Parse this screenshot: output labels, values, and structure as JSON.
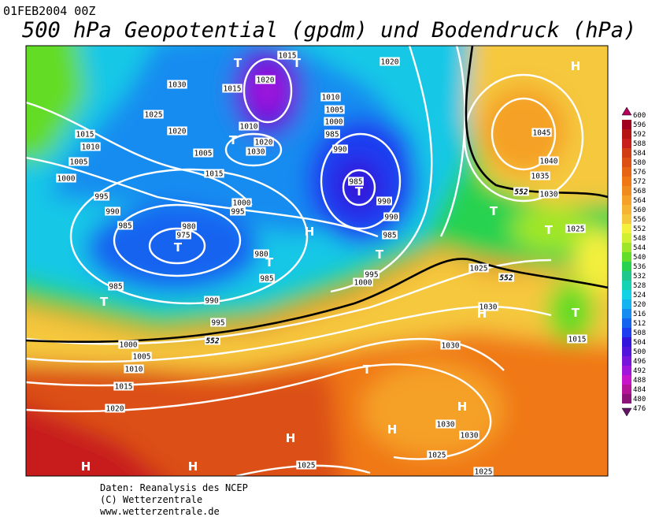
{
  "header": {
    "date": "01FEB2004 00Z",
    "title": "500 hPa Geopotential (gpdm) und Bodendruck (hPa)"
  },
  "map": {
    "pressure_labels": [
      1015,
      1020,
      1030,
      1015,
      1020,
      1025,
      1010,
      1005,
      1000,
      1010,
      1020,
      1015,
      985,
      1020,
      1030,
      1010,
      1005,
      990,
      1005,
      1015,
      1000,
      985,
      995,
      1000,
      995,
      990,
      990,
      990,
      985,
      980,
      975,
      985,
      980,
      985,
      1025,
      995,
      1000,
      985,
      990,
      1030,
      995,
      1000,
      1030,
      1005,
      1010,
      1015,
      1020,
      1030,
      1030,
      1025,
      1025,
      1025,
      1045,
      1040,
      1035,
      1030,
      1025,
      1015
    ],
    "height_labels": [
      552,
      552,
      552
    ],
    "centers": [
      "T",
      "T",
      "T",
      "T",
      "T",
      "T",
      "T",
      "T",
      "T",
      "T",
      "T",
      "T",
      "H",
      "H",
      "H",
      "H",
      "H",
      "H",
      "H",
      "H"
    ]
  },
  "legend": {
    "labels": [
      600,
      596,
      592,
      588,
      584,
      580,
      576,
      572,
      568,
      564,
      560,
      556,
      552,
      548,
      544,
      540,
      536,
      532,
      528,
      524,
      520,
      516,
      512,
      508,
      504,
      500,
      496,
      492,
      488,
      484,
      480,
      476
    ],
    "colors": [
      "#b4005a",
      "#a0001e",
      "#b41414",
      "#c81e1e",
      "#d23c14",
      "#dc5014",
      "#e66414",
      "#f07814",
      "#f08c1e",
      "#f5a028",
      "#f5b432",
      "#f5c83c",
      "#f5f03c",
      "#d2f032",
      "#a0e628",
      "#64dc28",
      "#28d250",
      "#1ec88c",
      "#14d2b4",
      "#14d2e6",
      "#14b4f0",
      "#148cf0",
      "#1464f0",
      "#1e3cf0",
      "#3214dc",
      "#5014dc",
      "#7814dc",
      "#a014dc",
      "#c814c8",
      "#b41496",
      "#8c1478",
      "#641464"
    ]
  },
  "footer": {
    "lines": [
      "Daten: Reanalysis des NCEP",
      "(C) Wetterzentrale",
      "www.wetterzentrale.de"
    ]
  }
}
